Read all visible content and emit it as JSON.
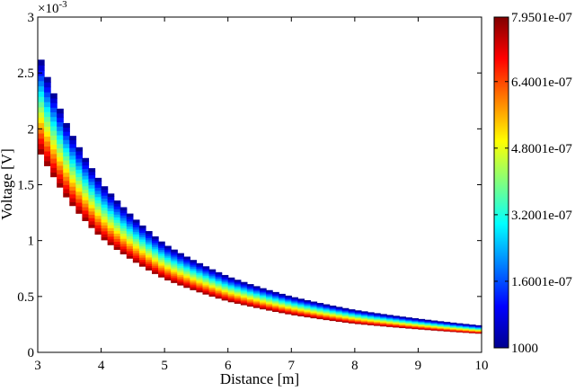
{
  "chart_data": {
    "type": "heatmap",
    "title": "",
    "xlabel": "Distance [m]",
    "ylabel": "Voltage [V]",
    "xlim": [
      3,
      10
    ],
    "ylim": [
      0,
      0.003
    ],
    "y_exponent_label": "×10",
    "y_exponent_power": "-3",
    "x_ticks": [
      3,
      4,
      5,
      6,
      7,
      8,
      9,
      10
    ],
    "x_tick_labels": [
      "3",
      "4",
      "5",
      "6",
      "7",
      "8",
      "9",
      "10"
    ],
    "y_ticks": [
      0,
      0.0005,
      0.001,
      0.0015,
      0.002,
      0.0025,
      0.003
    ],
    "y_tick_labels": [
      "0",
      "0.5",
      "1",
      "1.5",
      "2",
      "2.5",
      "3"
    ],
    "colorbar": {
      "colormap": "jet",
      "tick_labels": [
        "1000",
        "1.6001e-07",
        "3.2001e-07",
        "4.8001e-07",
        "6.4001e-07",
        "7.9501e-07"
      ],
      "tick_fractions": [
        0,
        0.2013,
        0.4025,
        0.6038,
        0.805,
        1
      ]
    },
    "band": {
      "x_step": 0.1,
      "columns": [
        {
          "x": 3.0,
          "y_lower": 0.00183,
          "y_upper": 0.0027
        },
        {
          "x": 3.5,
          "y_lower": 0.00135,
          "y_upper": 0.00199
        },
        {
          "x": 4.0,
          "y_lower": 0.00103,
          "y_upper": 0.00152
        },
        {
          "x": 5.0,
          "y_lower": 0.00066,
          "y_upper": 0.00097
        },
        {
          "x": 6.0,
          "y_lower": 0.00046,
          "y_upper": 0.00068
        },
        {
          "x": 7.0,
          "y_lower": 0.00034,
          "y_upper": 0.0005
        },
        {
          "x": 8.0,
          "y_lower": 0.00026,
          "y_upper": 0.00038
        },
        {
          "x": 10.0,
          "y_lower": 0.00017,
          "y_upper": 0.00024
        }
      ]
    }
  }
}
